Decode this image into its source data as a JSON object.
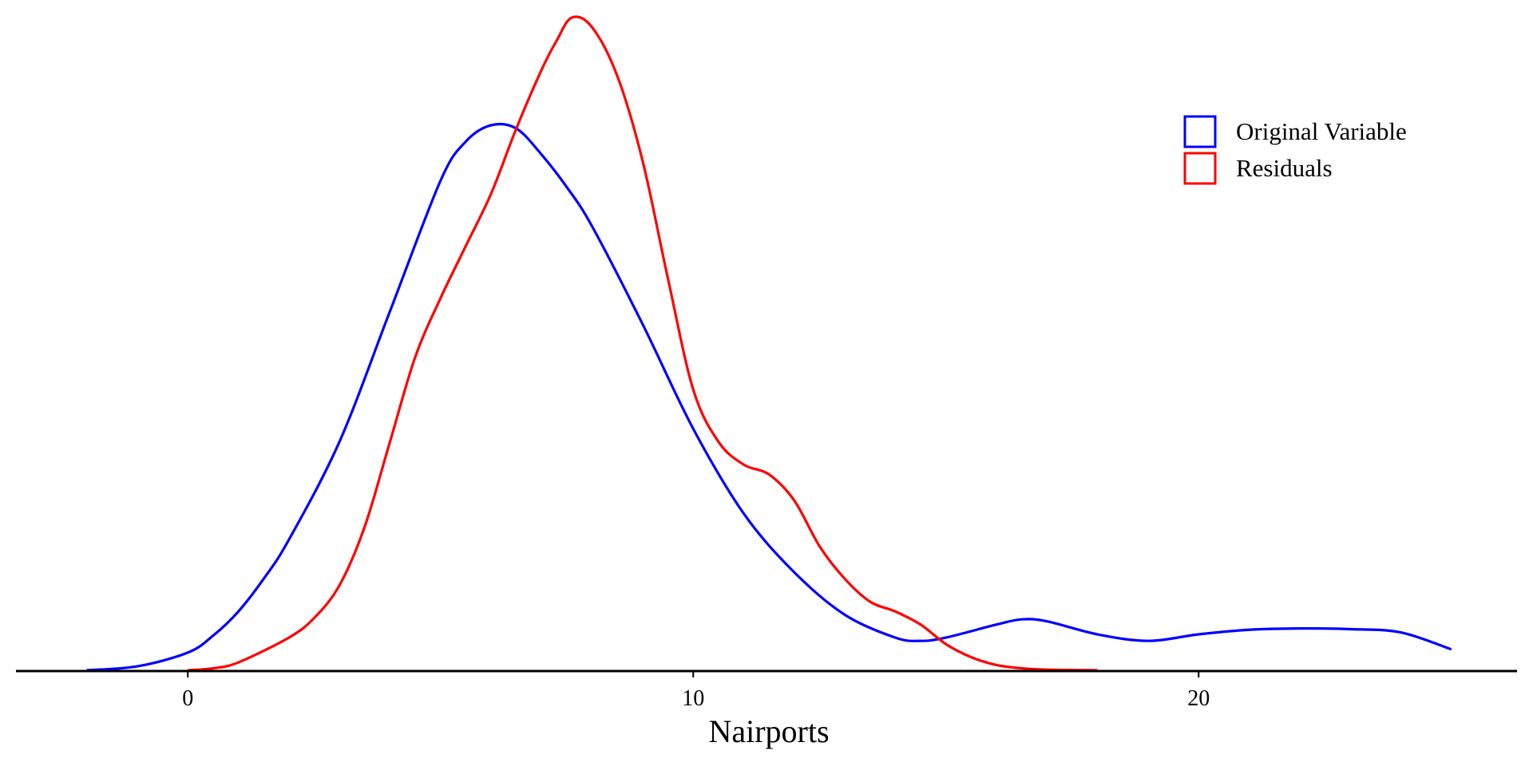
{
  "chart_data": {
    "type": "line",
    "title": "",
    "xlabel": "Nairports",
    "ylabel": "",
    "xlim": [
      -3.4,
      26.3
    ],
    "ylim": [
      0,
      1
    ],
    "x_ticks": [
      0,
      10,
      20
    ],
    "x_tick_labels": [
      "0",
      "10",
      "20"
    ],
    "grid": false,
    "legend_position": "top-right",
    "y_note": "density curves; y values are relative to the peak of the Residuals curve (no y axis is printed)",
    "series": [
      {
        "name": "Original Variable",
        "color": "#0000ff",
        "x": [
          -2.0,
          -1.0,
          0.0,
          0.5,
          1.0,
          1.5,
          2.0,
          3.0,
          4.0,
          5.0,
          5.5,
          6.0,
          6.5,
          7.0,
          7.5,
          8.0,
          9.0,
          10.0,
          11.0,
          12.0,
          13.0,
          14.0,
          14.5,
          15.0,
          16.0,
          16.5,
          17.0,
          18.0,
          19.0,
          20.0,
          21.0,
          22.0,
          23.0,
          24.0,
          25.0
        ],
        "y": [
          0.0,
          0.006,
          0.027,
          0.053,
          0.09,
          0.14,
          0.2,
          0.35,
          0.55,
          0.75,
          0.81,
          0.835,
          0.83,
          0.79,
          0.74,
          0.68,
          0.53,
          0.37,
          0.24,
          0.15,
          0.085,
          0.05,
          0.045,
          0.05,
          0.07,
          0.078,
          0.075,
          0.055,
          0.045,
          0.055,
          0.062,
          0.064,
          0.063,
          0.058,
          0.032
        ]
      },
      {
        "name": "Residuals",
        "color": "#ff0000",
        "x": [
          0.0,
          0.5,
          1.0,
          2.0,
          2.5,
          3.0,
          3.5,
          4.0,
          4.5,
          5.0,
          5.5,
          6.0,
          6.5,
          7.0,
          7.3,
          7.6,
          8.0,
          8.5,
          9.0,
          9.5,
          10.0,
          10.5,
          11.0,
          11.5,
          12.0,
          12.5,
          13.0,
          13.5,
          14.0,
          14.5,
          15.0,
          15.5,
          16.0,
          16.5,
          17.0,
          18.0
        ],
        "y": [
          0.0,
          0.003,
          0.012,
          0.05,
          0.08,
          0.13,
          0.22,
          0.35,
          0.48,
          0.57,
          0.65,
          0.73,
          0.83,
          0.92,
          0.965,
          1.0,
          0.985,
          0.91,
          0.78,
          0.6,
          0.43,
          0.35,
          0.315,
          0.3,
          0.26,
          0.19,
          0.14,
          0.105,
          0.09,
          0.07,
          0.04,
          0.02,
          0.008,
          0.003,
          0.001,
          0.0
        ]
      }
    ]
  }
}
